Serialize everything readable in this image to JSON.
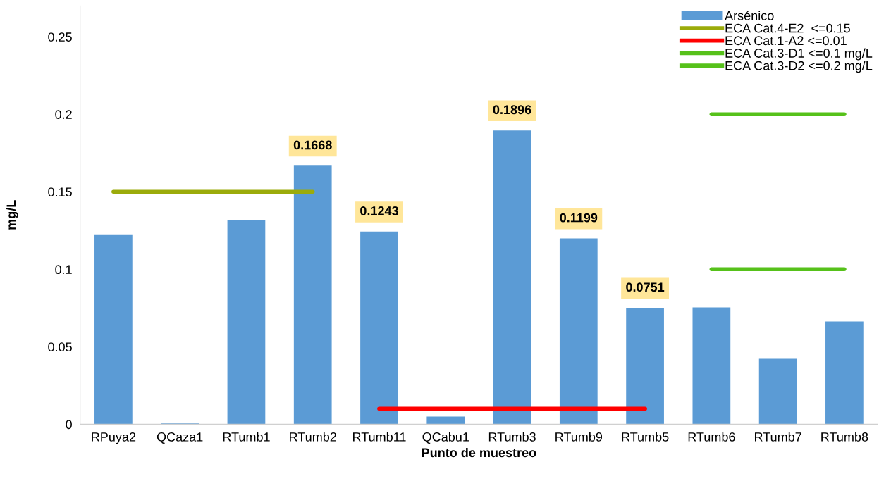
{
  "chart_data": {
    "type": "bar",
    "xlabel": "Punto de muestreo",
    "ylabel": "mg/L",
    "categories": [
      "RPuya2",
      "QCaza1",
      "RTumb1",
      "RTumb2",
      "RTumb11",
      "QCabu1",
      "RTumb3",
      "RTumb9",
      "RTumb5",
      "RTumb6",
      "RTumb7",
      "RTumb8"
    ],
    "series": [
      {
        "name": "Arsénico",
        "color": "#5b9bd5",
        "values": [
          0.1225,
          0.0005,
          0.1317,
          0.1668,
          0.1243,
          0.005,
          0.1896,
          0.1199,
          0.0751,
          0.0754,
          0.0422,
          0.0663
        ],
        "value_labels": [
          null,
          null,
          null,
          "0.1668",
          "0.1243",
          null,
          "0.1896",
          "0.1199",
          "0.0751",
          null,
          null,
          null
        ]
      },
      {
        "name": "ECA Cat.4-E2  <=0.15",
        "type": "line",
        "color": "#9bab0a",
        "values": [
          0.15,
          0.15,
          0.15,
          0.15,
          null,
          null,
          null,
          null,
          null,
          null,
          null,
          null
        ]
      },
      {
        "name": "ECA Cat.1-A2 <=0.01",
        "type": "line",
        "color": "#ff0000",
        "values": [
          null,
          null,
          null,
          null,
          0.01,
          0.01,
          0.01,
          0.01,
          0.01,
          null,
          null,
          null
        ]
      },
      {
        "name": "ECA Cat.3-D1 <=0.1 mg/L",
        "type": "line",
        "color": "#56c11a",
        "values": [
          null,
          null,
          null,
          null,
          null,
          null,
          null,
          null,
          null,
          0.1,
          0.1,
          0.1
        ]
      },
      {
        "name": "ECA Cat.3-D2 <=0.2 mg/L",
        "type": "line",
        "color": "#56c11a",
        "values": [
          null,
          null,
          null,
          null,
          null,
          null,
          null,
          null,
          null,
          0.2,
          0.2,
          0.2
        ]
      }
    ],
    "ylim": [
      0,
      0.27
    ],
    "yticks": [
      0,
      0.05,
      0.1,
      0.15,
      0.2,
      0.25
    ],
    "grid": false,
    "legend": "top right",
    "marker": "none",
    "line_style": "solid"
  }
}
